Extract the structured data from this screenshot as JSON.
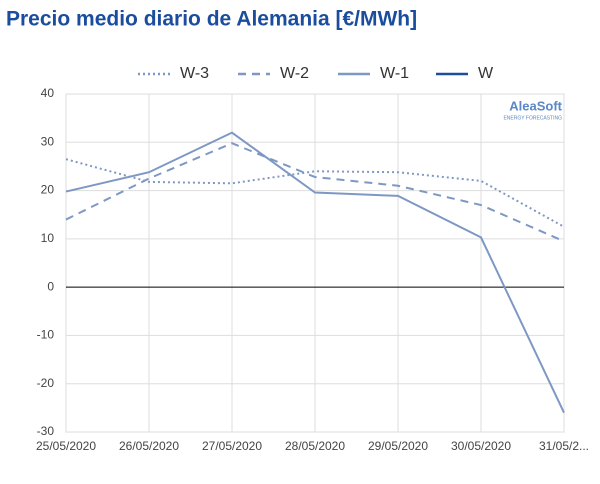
{
  "chart_data": {
    "type": "line",
    "title": "Precio medio diario de Alemania [€/MWh]",
    "watermark": {
      "brand": "AleaSoft",
      "tagline": "ENERGY FORECASTING"
    },
    "categories": [
      "25/05/2020",
      "26/05/2020",
      "27/05/2020",
      "28/05/2020",
      "29/05/2020",
      "30/05/2020",
      "31/05/2..."
    ],
    "series": [
      {
        "name": "W-3",
        "color": "#7e98c4",
        "style": "dotted",
        "values": [
          26.5,
          21.8,
          21.5,
          24,
          23.8,
          22,
          12.5
        ]
      },
      {
        "name": "W-2",
        "color": "#7e98c4",
        "style": "dashed",
        "values": [
          14,
          22.5,
          29.8,
          22.8,
          21,
          17,
          9.5
        ]
      },
      {
        "name": "W-1",
        "color": "#7e98c4",
        "style": "solid",
        "values": [
          19.8,
          23.8,
          32,
          19.6,
          18.9,
          10.3,
          -26
        ]
      },
      {
        "name": "W",
        "color": "#1f4e99",
        "style": "solid",
        "values": [
          null,
          null,
          null,
          null,
          null,
          null,
          null
        ]
      }
    ],
    "ylim": [
      -30,
      40
    ],
    "yticks": [
      -30,
      -20,
      -10,
      0,
      10,
      20,
      30,
      40
    ],
    "grid": true,
    "legend": "top"
  }
}
